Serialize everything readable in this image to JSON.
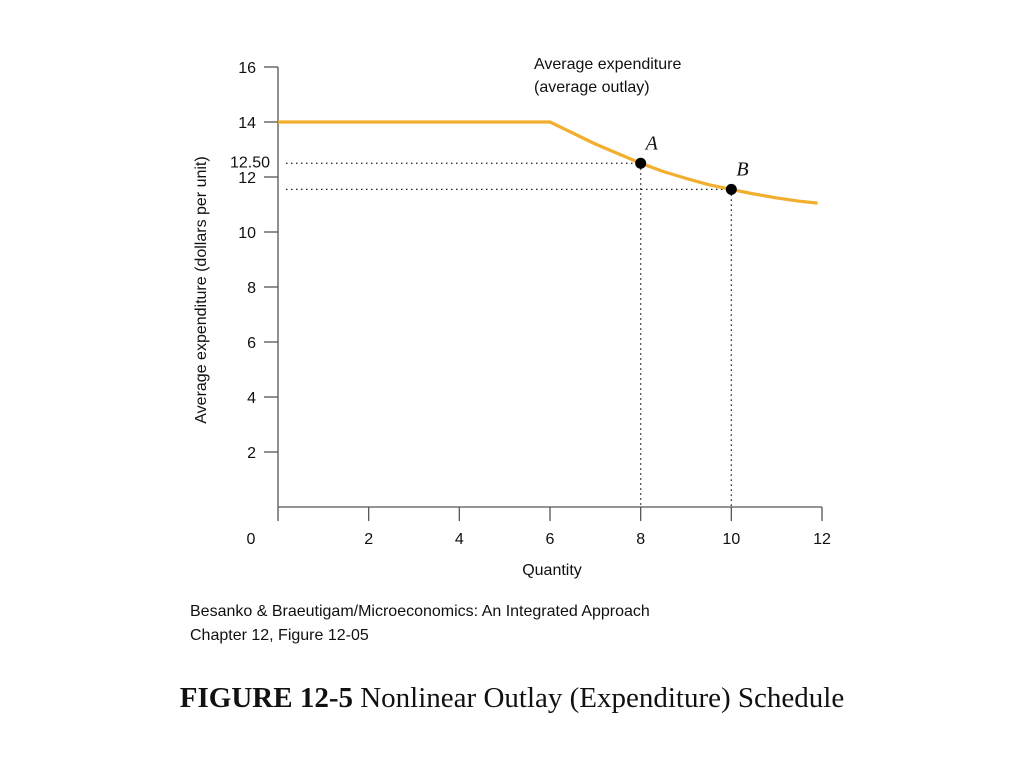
{
  "chart_data": {
    "type": "line",
    "title": "",
    "xlabel": "Quantity",
    "ylabel": "Average expenditure (dollars per unit)",
    "xlim": [
      0,
      12
    ],
    "ylim": [
      0,
      16
    ],
    "x_ticks": [
      2,
      4,
      6,
      8,
      10,
      12
    ],
    "y_ticks": [
      2,
      4,
      6,
      8,
      10,
      12,
      14,
      16
    ],
    "origin_label": "0",
    "extra_y_label": "12.50",
    "grid": false,
    "series": [
      {
        "name": "Average expenditure (average outlay)",
        "label_line1": "Average expenditure",
        "label_line2": "(average outlay)",
        "color": "#F2AE2E",
        "points": [
          {
            "x": 0,
            "y": 14
          },
          {
            "x": 6,
            "y": 14
          },
          {
            "x": 6.5,
            "y": 13.6
          },
          {
            "x": 7,
            "y": 13.2
          },
          {
            "x": 7.5,
            "y": 12.85
          },
          {
            "x": 8,
            "y": 12.5
          },
          {
            "x": 8.5,
            "y": 12.2
          },
          {
            "x": 9,
            "y": 11.95
          },
          {
            "x": 9.5,
            "y": 11.72
          },
          {
            "x": 10,
            "y": 11.55
          },
          {
            "x": 10.5,
            "y": 11.38
          },
          {
            "x": 11,
            "y": 11.24
          },
          {
            "x": 11.5,
            "y": 11.12
          },
          {
            "x": 11.9,
            "y": 11.05
          }
        ]
      }
    ],
    "points": [
      {
        "label": "A",
        "x": 8,
        "y": 12.5
      },
      {
        "label": "B",
        "x": 10,
        "y": 11.55
      }
    ]
  },
  "source": {
    "line1": "Besanko & Braeutigam/Microeconomics: An Integrated Approach",
    "line2": "Chapter 12, Figure 12-05"
  },
  "caption": {
    "bold": "FIGURE 12-5",
    "text": " Nonlinear Outlay (Expenditure) Schedule"
  }
}
